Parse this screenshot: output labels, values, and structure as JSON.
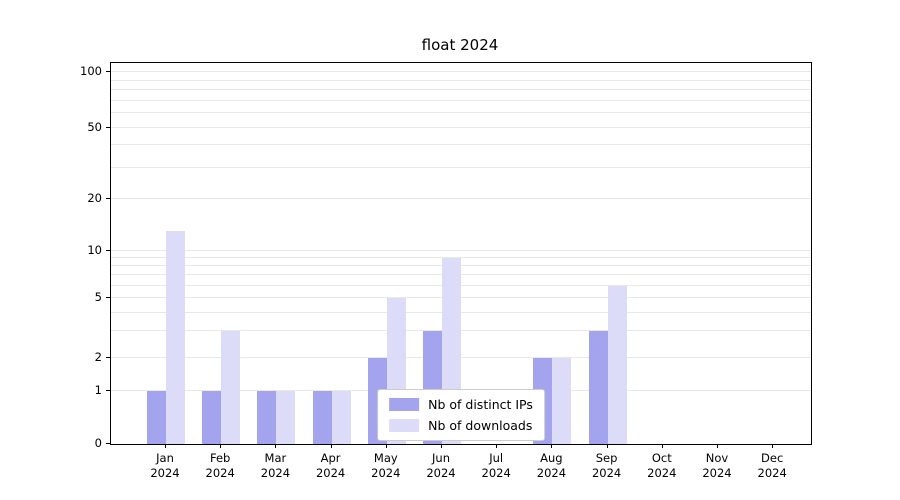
{
  "chart_data": {
    "type": "bar",
    "title": "float 2024",
    "categories": [
      {
        "month": "Jan",
        "year": "2024"
      },
      {
        "month": "Feb",
        "year": "2024"
      },
      {
        "month": "Mar",
        "year": "2024"
      },
      {
        "month": "Apr",
        "year": "2024"
      },
      {
        "month": "May",
        "year": "2024"
      },
      {
        "month": "Jun",
        "year": "2024"
      },
      {
        "month": "Jul",
        "year": "2024"
      },
      {
        "month": "Aug",
        "year": "2024"
      },
      {
        "month": "Sep",
        "year": "2024"
      },
      {
        "month": "Oct",
        "year": "2024"
      },
      {
        "month": "Nov",
        "year": "2024"
      },
      {
        "month": "Dec",
        "year": "2024"
      }
    ],
    "series": [
      {
        "name": "Nb of distinct IPs",
        "color": "#a3a3ee",
        "values": [
          1,
          1,
          1,
          1,
          2,
          3,
          0,
          2,
          3,
          0,
          0,
          0
        ]
      },
      {
        "name": "Nb of downloads",
        "color": "#dcdcf8",
        "values": [
          13,
          3,
          1,
          1,
          5,
          9,
          0,
          2,
          6,
          0,
          0,
          0
        ]
      }
    ],
    "y_axis": {
      "scale": "symlog",
      "ticks": [
        0,
        1,
        2,
        5,
        10,
        20,
        50,
        100
      ],
      "gridlines": [
        1,
        2,
        3,
        4,
        5,
        6,
        7,
        8,
        9,
        10,
        20,
        30,
        40,
        50,
        60,
        70,
        80,
        90,
        100
      ],
      "range": [
        0,
        100
      ]
    },
    "x_axis": {
      "label": ""
    },
    "grid": true,
    "legend_position": "lower center"
  }
}
